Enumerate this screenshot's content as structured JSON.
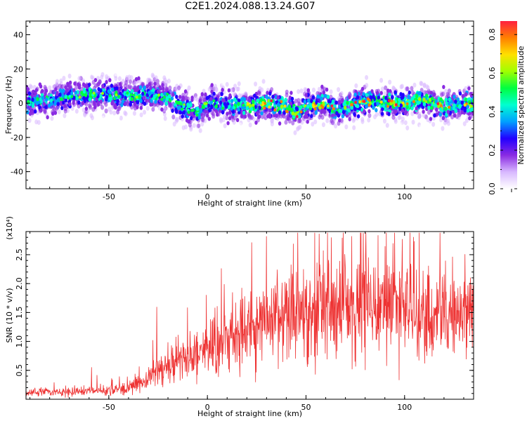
{
  "title": "C2E1.2024.088.13.24.G07",
  "chart_data": [
    {
      "type": "heatmap",
      "xlabel": "Height of straight line (km)",
      "ylabel": "Frequency (Hz)",
      "xlim": [
        -92,
        135
      ],
      "ylim": [
        -50,
        48
      ],
      "xticks": [
        -50,
        0,
        50,
        100
      ],
      "yticks": [
        -40,
        -20,
        0,
        20,
        40
      ],
      "colorbar": {
        "label": "Normalized spectral amplitude",
        "ticks": [
          "0.0",
          "0.2",
          "0.4",
          "0.6",
          "0.8"
        ],
        "range": [
          0,
          0.87
        ],
        "colormap": [
          "#ffffff",
          "#d8b8ff",
          "#8a2be2",
          "#2200ff",
          "#00a0ff",
          "#00ffd0",
          "#00ff40",
          "#a0ff00",
          "#ffe000",
          "#ff8000",
          "#ff2040"
        ]
      },
      "ridge": {
        "x": [
          -92,
          -80,
          -70,
          -60,
          -50,
          -40,
          -30,
          -20,
          -10,
          -5,
          0,
          10,
          20,
          30,
          40,
          45,
          50,
          60,
          65,
          70,
          80,
          90,
          100,
          110,
          120,
          135
        ],
        "y": [
          0,
          2,
          4,
          5,
          5,
          4,
          5,
          3,
          -3,
          -6,
          0,
          -1,
          -2,
          0,
          -2,
          -6,
          -2,
          0,
          -4,
          -2,
          1,
          0,
          0,
          2,
          -2,
          0
        ]
      }
    },
    {
      "type": "line",
      "xlabel": "Height of straight line (km)",
      "ylabel": "SNR (10 * v/v)",
      "y_multiplier": "(x10⁴)",
      "xlim": [
        -92,
        135
      ],
      "ylim": [
        0,
        2.9
      ],
      "xticks": [
        -50,
        0,
        50,
        100
      ],
      "yticks": [
        "0.5",
        "1.0",
        "1.5",
        "2.0",
        "2.5"
      ],
      "color": "#ee3333",
      "trend": {
        "x": [
          -92,
          -70,
          -50,
          -35,
          -25,
          -15,
          -5,
          5,
          20,
          35,
          50,
          70,
          100,
          120,
          135
        ],
        "y": [
          0.12,
          0.13,
          0.15,
          0.25,
          0.5,
          0.65,
          0.8,
          0.95,
          1.2,
          1.4,
          1.55,
          1.6,
          1.55,
          1.45,
          1.55
        ]
      },
      "peak_y": 2.88
    }
  ]
}
